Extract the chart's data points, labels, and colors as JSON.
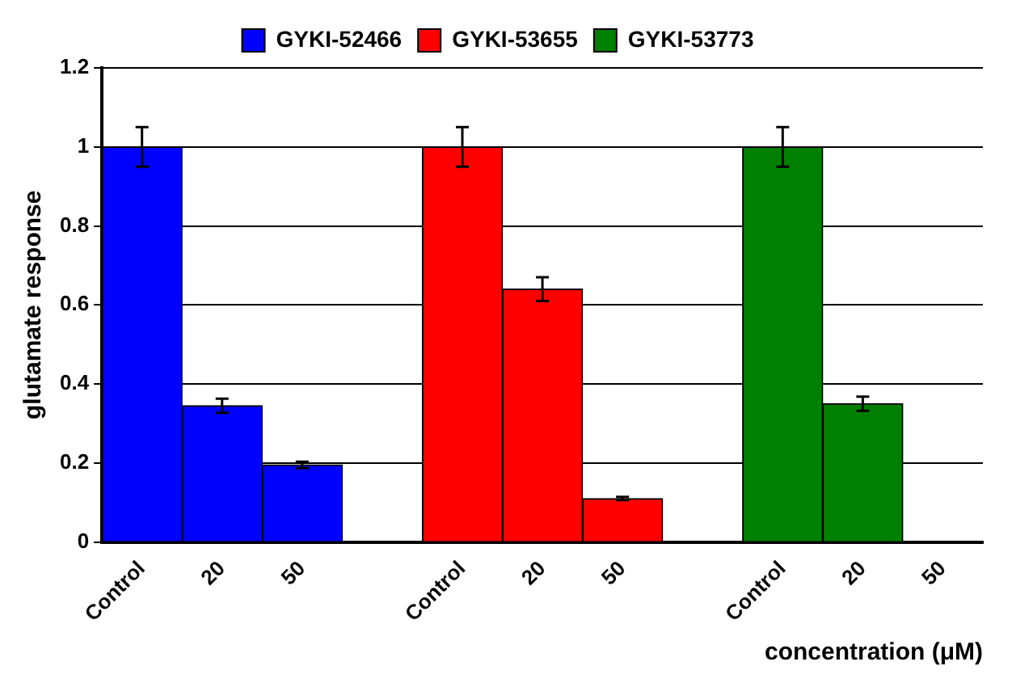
{
  "chart_data": {
    "type": "bar",
    "xlabel": "concentration (μM)",
    "ylabel": "glutamate response",
    "categories": [
      "Control",
      "20",
      "50",
      null,
      "Control",
      "20",
      "50",
      null,
      "Control",
      "20",
      "50"
    ],
    "series": [
      {
        "name": "GYKI-52466",
        "color": "#0000ff",
        "values": [
          1,
          0.345,
          0.195,
          null,
          null,
          null,
          null,
          null,
          null,
          null,
          null
        ],
        "errors": [
          0.05,
          0.018,
          0.008,
          null,
          null,
          null,
          null,
          null,
          null,
          null,
          null
        ]
      },
      {
        "name": "GYKI-53655",
        "color": "#ff0000",
        "values": [
          null,
          null,
          null,
          null,
          1,
          0.64,
          0.11,
          null,
          null,
          null,
          null
        ],
        "errors": [
          null,
          null,
          null,
          null,
          0.05,
          0.03,
          0.004,
          null,
          null,
          null,
          null
        ]
      },
      {
        "name": "GYKI-53773",
        "color": "#008000",
        "values": [
          null,
          null,
          null,
          null,
          null,
          null,
          null,
          null,
          1,
          0.35,
          null
        ],
        "errors": [
          null,
          null,
          null,
          null,
          null,
          null,
          null,
          null,
          0.05,
          0.018,
          null
        ]
      }
    ],
    "ylim": [
      0,
      1.2
    ],
    "yticks": [
      0,
      0.2,
      0.4,
      0.6,
      0.8,
      1,
      1.2
    ],
    "grid": "y",
    "legend": "top"
  }
}
